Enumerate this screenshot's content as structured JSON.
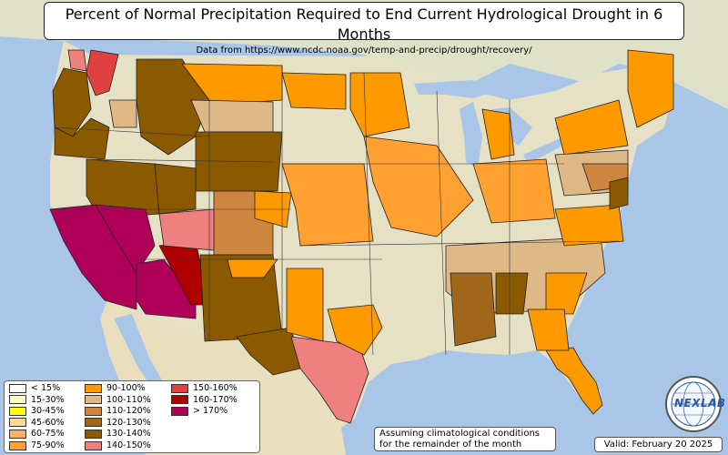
{
  "title": "Percent of Normal Precipitation Required to End Current Hydrological Drought in 6 Months",
  "subtitle": "Data from https://www.ncdc.noaa.gov/temp-and-precip/drought/recovery/",
  "legend": [
    {
      "label": "< 15%",
      "color": "#ffffff"
    },
    {
      "label": "15-30%",
      "color": "#ffffc0"
    },
    {
      "label": "30-45%",
      "color": "#ffff00"
    },
    {
      "label": "45-60%",
      "color": "#ffd898"
    },
    {
      "label": "60-75%",
      "color": "#ffb060"
    },
    {
      "label": "75-90%",
      "color": "#ffa030"
    },
    {
      "label": "90-100%",
      "color": "#ff9900"
    },
    {
      "label": "100-110%",
      "color": "#deb887"
    },
    {
      "label": "110-120%",
      "color": "#cd853f"
    },
    {
      "label": "120-130%",
      "color": "#a0661a"
    },
    {
      "label": "130-140%",
      "color": "#8b5a00"
    },
    {
      "label": "140-150%",
      "color": "#f08080"
    },
    {
      "label": "150-160%",
      "color": "#e04040"
    },
    {
      "label": "160-170%",
      "color": "#b00000"
    },
    {
      "label": "> 170%",
      "color": "#b0005a"
    }
  ],
  "assumption_note": [
    "Assuming climatological conditions",
    "for the remainder of the month"
  ],
  "valid_label": "Valid: February 20 2025",
  "logo_text": "NEXLAB",
  "colors": {
    "ocean": "#a9c6e8",
    "land": "#e8e4cc",
    "border": "#222222"
  }
}
